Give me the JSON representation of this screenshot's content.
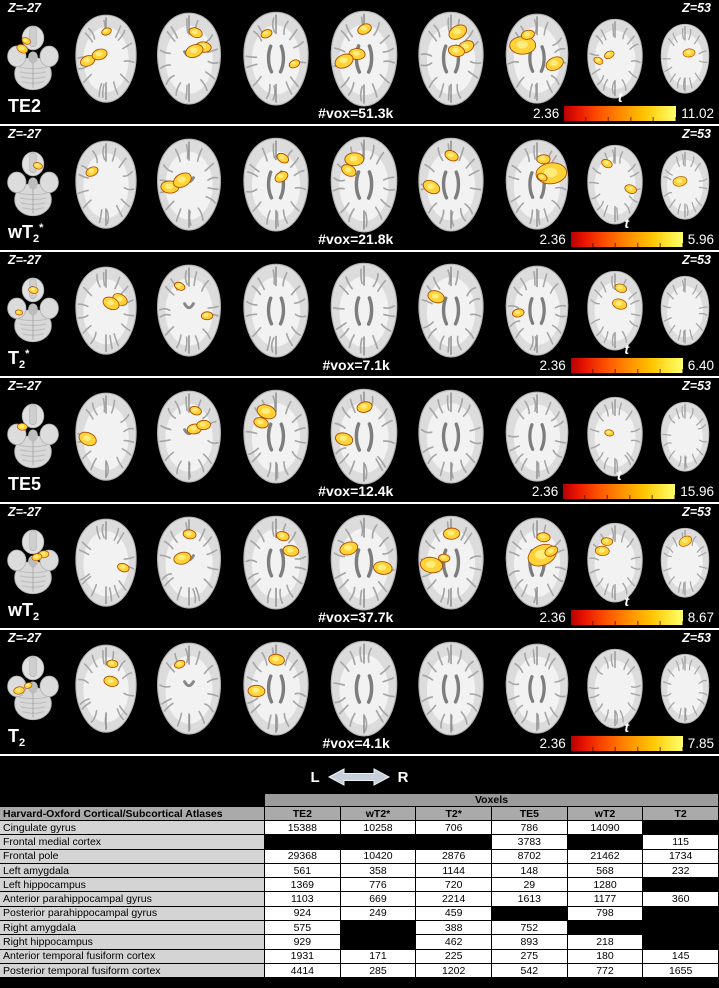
{
  "figure": {
    "rows": [
      {
        "z_left": "Z=-27",
        "z_right": "Z=53",
        "label": {
          "main": "TE2",
          "sub": "",
          "sup": ""
        },
        "vox": "#vox=51.3k",
        "t_label": "t",
        "t_min": "2.36",
        "t_max": "11.02",
        "activations": [
          2,
          3,
          3,
          2,
          3,
          3,
          3,
          2,
          1
        ]
      },
      {
        "z_left": "Z=-27",
        "z_right": "Z=53",
        "label": {
          "main": "wT",
          "sub": "2",
          "sup": "*"
        },
        "vox": "#vox=21.8k",
        "t_label": "t",
        "t_min": "2.36",
        "t_max": "5.96",
        "activations": [
          1,
          1,
          2,
          2,
          2,
          2,
          3,
          2,
          1
        ]
      },
      {
        "z_left": "Z=-27",
        "z_right": "Z=53",
        "label": {
          "main": "T",
          "sub": "2",
          "sup": "*"
        },
        "vox": "#vox=7.1k",
        "t_label": "t",
        "t_min": "2.36",
        "t_max": "6.40",
        "activations": [
          2,
          2,
          2,
          0,
          0,
          1,
          1,
          2,
          0
        ]
      },
      {
        "z_left": "Z=-27",
        "z_right": "Z=53",
        "label": {
          "main": "TE5",
          "sub": "",
          "sup": ""
        },
        "vox": "#vox=12.4k",
        "t_label": "t",
        "t_min": "2.36",
        "t_max": "15.96",
        "activations": [
          1,
          1,
          3,
          2,
          2,
          0,
          0,
          1,
          0
        ]
      },
      {
        "z_left": "Z=-27",
        "z_right": "Z=53",
        "label": {
          "main": "wT",
          "sub": "2",
          "sup": ""
        },
        "vox": "#vox=37.7k",
        "t_label": "t",
        "t_min": "2.36",
        "t_max": "8.67",
        "activations": [
          2,
          1,
          2,
          2,
          2,
          3,
          3,
          2,
          1
        ]
      },
      {
        "z_left": "Z=-27",
        "z_right": "Z=53",
        "label": {
          "main": "T",
          "sub": "2",
          "sup": ""
        },
        "vox": "#vox=4.1k",
        "t_label": "t",
        "t_min": "2.36",
        "t_max": "7.85",
        "activations": [
          2,
          2,
          1,
          2,
          0,
          0,
          0,
          0,
          0
        ]
      }
    ],
    "slices_per_row": 9,
    "colorbar_colors": {
      "low": "#b70000",
      "mid": "#ff8f00",
      "high": "#ffff6e"
    },
    "activation_color": "#ffd338"
  },
  "orientation": {
    "left": "L",
    "right": "R"
  },
  "table": {
    "row_header": "Harvard-Oxford Cortical/Subcortical Atlases",
    "group_header": "Voxels",
    "columns": [
      "TE2",
      "wT2*",
      "T2*",
      "TE5",
      "wT2",
      "T2"
    ],
    "rows": [
      {
        "region": "Cingulate gyrus",
        "values": [
          "15388",
          "10258",
          "706",
          "786",
          "14090",
          ""
        ]
      },
      {
        "region": "Frontal medial cortex",
        "values": [
          "",
          "",
          "",
          "3783",
          "",
          "115"
        ]
      },
      {
        "region": "Frontal pole",
        "values": [
          "29368",
          "10420",
          "2876",
          "8702",
          "21462",
          "1734"
        ]
      },
      {
        "region": "Left amygdala",
        "values": [
          "561",
          "358",
          "1144",
          "148",
          "568",
          "232"
        ]
      },
      {
        "region": "Left hippocampus",
        "values": [
          "1369",
          "776",
          "720",
          "29",
          "1280",
          ""
        ]
      },
      {
        "region": "Anterior parahippocampal gyrus",
        "values": [
          "1103",
          "669",
          "2214",
          "1613",
          "1177",
          "360"
        ]
      },
      {
        "region": "Posterior parahippocampal gyrus",
        "values": [
          "924",
          "249",
          "459",
          "",
          "798",
          ""
        ]
      },
      {
        "region": "Right amygdala",
        "values": [
          "575",
          "",
          "388",
          "752",
          "",
          ""
        ]
      },
      {
        "region": "Right hippocampus",
        "values": [
          "929",
          "",
          "462",
          "893",
          "218",
          ""
        ]
      },
      {
        "region": "Anterior temporal fusiform cortex",
        "values": [
          "1931",
          "171",
          "225",
          "275",
          "180",
          "145"
        ]
      },
      {
        "region": "Posterior temporal fusiform cortex",
        "values": [
          "4414",
          "285",
          "1202",
          "542",
          "772",
          "1655"
        ]
      }
    ]
  }
}
